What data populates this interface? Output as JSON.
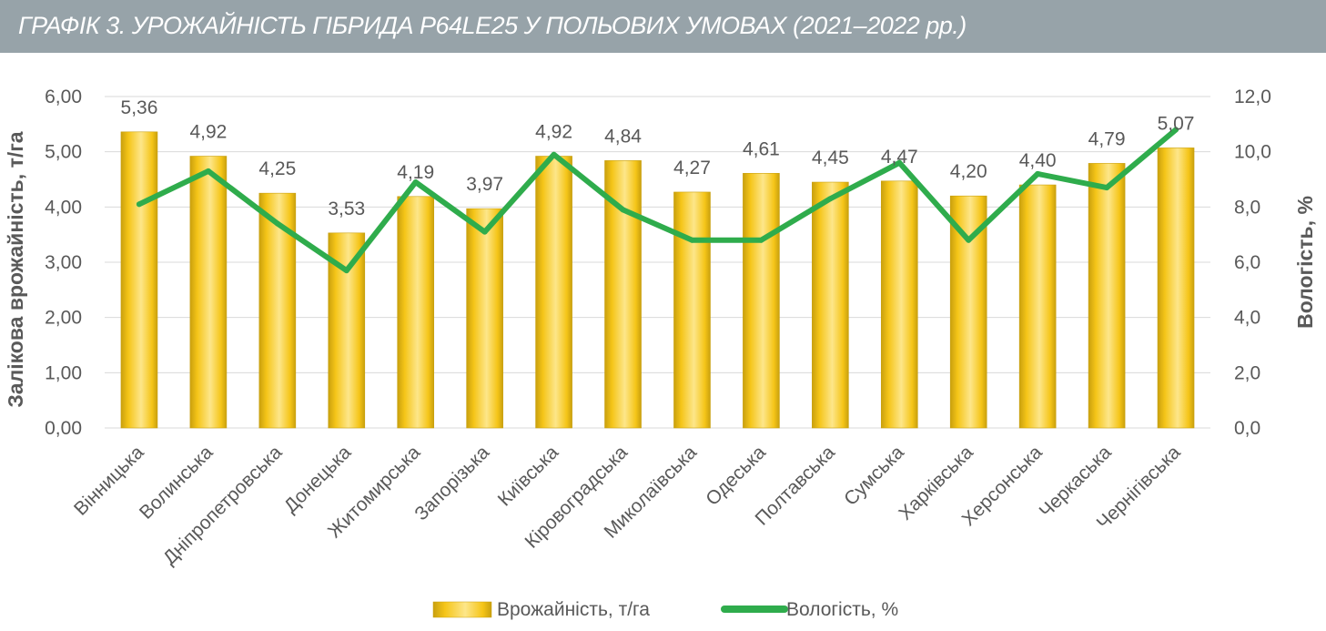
{
  "header": {
    "title": "ГРАФІК 3. УРОЖАЙНІСТЬ ГІБРИДА P64LE25 У ПОЛЬОВИХ УМОВАХ (2021–2022 рр.)"
  },
  "colors": {
    "bar": "#f5c518",
    "bar_light": "#fde68a",
    "bar_dark": "#c9a00e",
    "line": "#2fac4c",
    "grid": "#d9d9d9",
    "text": "#595959",
    "header_bg": "#97a3a9"
  },
  "chart_data": {
    "type": "bar",
    "title": "",
    "categories": [
      "Вінницька",
      "Волинська",
      "Дніпропетровська",
      "Донецька",
      "Житомирська",
      "Запорізька",
      "Київська",
      "Кіровоградська",
      "Миколаївська",
      "Одеська",
      "Полтавська",
      "Сумська",
      "Харківська",
      "Херсонська",
      "Черкаська",
      "Чернігівська"
    ],
    "series": [
      {
        "name": "Врожайність, т/га",
        "kind": "bar",
        "axis": "left",
        "values": [
          5.36,
          4.92,
          4.25,
          3.53,
          4.19,
          3.97,
          4.92,
          4.84,
          4.27,
          4.61,
          4.45,
          4.47,
          4.2,
          4.4,
          4.79,
          5.07
        ],
        "labels": [
          "5,36",
          "4,92",
          "4,25",
          "3,53",
          "4,19",
          "3,97",
          "4,92",
          "4,84",
          "4,27",
          "4,61",
          "4,45",
          "4,47",
          "4,20",
          "4,40",
          "4,79",
          "5,07"
        ]
      },
      {
        "name": "Вологість, %",
        "kind": "line",
        "axis": "right",
        "values": [
          8.1,
          9.3,
          7.4,
          5.7,
          8.9,
          7.1,
          9.9,
          7.9,
          6.8,
          6.8,
          8.3,
          9.6,
          6.8,
          9.2,
          8.7,
          10.8
        ]
      }
    ],
    "ylabel": "Залікова врожайність, т/га",
    "y2label": "Вологість, %",
    "ylim": [
      0,
      6
    ],
    "y2lim": [
      0,
      12
    ],
    "yticks": [
      "0,00",
      "1,00",
      "2,00",
      "3,00",
      "4,00",
      "5,00",
      "6,00"
    ],
    "y2ticks": [
      "0,0",
      "2,0",
      "4,0",
      "6,0",
      "8,0",
      "10,0",
      "12,0"
    ],
    "grid": true,
    "legend": "bottom"
  }
}
